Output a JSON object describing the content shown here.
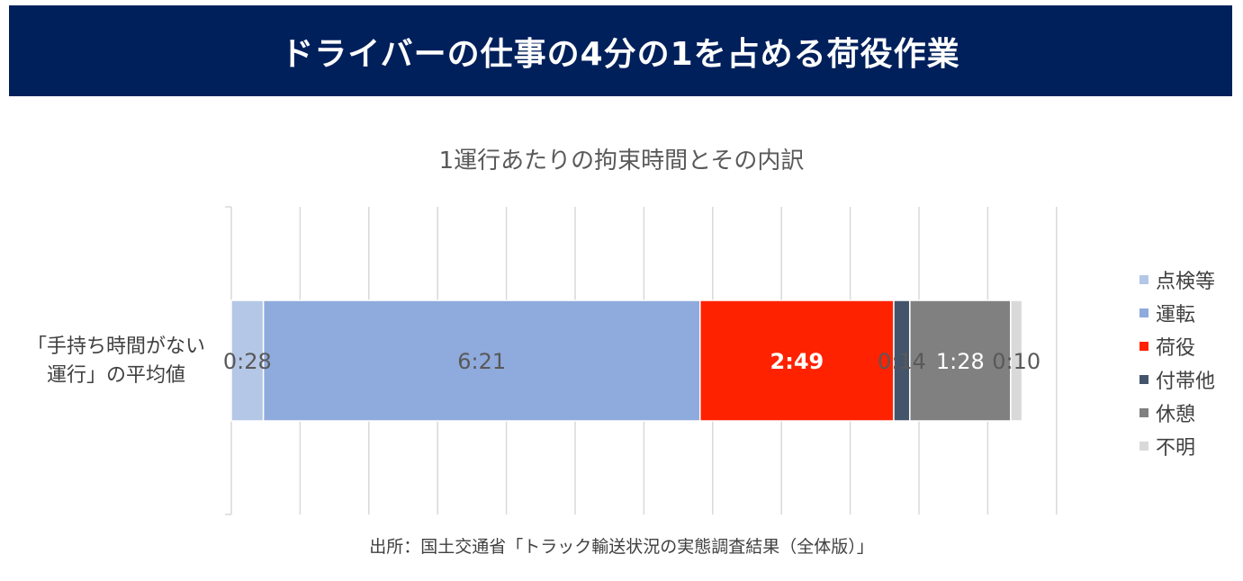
{
  "banner": {
    "title": "ドライバーの仕事の4分の1を占める荷役作業"
  },
  "chart_data": {
    "type": "bar",
    "orientation": "horizontal",
    "stacked": true,
    "title": "1運行あたりの拘束時間とその内訳",
    "categories": [
      "「手持ち時間がない運行」の平均値"
    ],
    "category_label_lines": [
      "「手持ち時間がない",
      "運行」の平均値"
    ],
    "xlim": [
      0,
      750
    ],
    "grid": true,
    "legend_position": "right",
    "value_unit": "minutes",
    "series": [
      {
        "name": "点検等",
        "values": [
          28
        ],
        "label": "0:28",
        "color": "#b4c7e7",
        "label_color": "#595959",
        "bold": false
      },
      {
        "name": "運転",
        "values": [
          381
        ],
        "label": "6:21",
        "color": "#8faadc",
        "label_color": "#595959",
        "bold": false
      },
      {
        "name": "荷役",
        "values": [
          169
        ],
        "label": "2:49",
        "color": "#ff2200",
        "label_color": "#ffffff",
        "bold": true
      },
      {
        "name": "付帯他",
        "values": [
          14
        ],
        "label": "0:14",
        "color": "#44546a",
        "label_color": "#595959",
        "bold": false
      },
      {
        "name": "休憩",
        "values": [
          88
        ],
        "label": "1:28",
        "color": "#808080",
        "label_color": "#ffffff",
        "bold": false
      },
      {
        "name": "不明",
        "values": [
          10
        ],
        "label": "0:10",
        "color": "#d9d9d9",
        "label_color": "#595959",
        "bold": false
      }
    ]
  },
  "source": {
    "text": "出所：国土交通省「トラック輸送状況の実態調査結果（全体版）」"
  }
}
